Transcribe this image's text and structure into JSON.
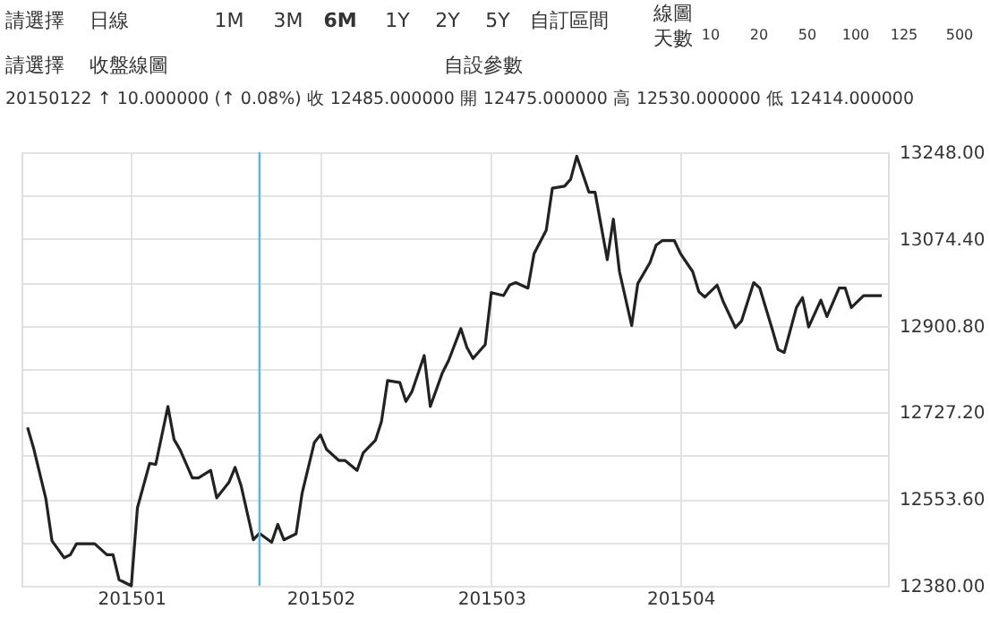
{
  "chart_data": {
    "type": "line",
    "annotations": [
      "請選擇",
      "日線",
      "1M",
      "3M",
      "6M",
      "1Y",
      "2Y",
      "5Y",
      "自訂區間",
      "線圖",
      "天數",
      "10",
      "20",
      "50",
      "100",
      "125",
      "500",
      "請選擇",
      "收盤線圖",
      "自設參數",
      "20150122  ↑ 10.000000 (↑ 0.08%)     收 12485.000000     開 12475.000000     高 12530.000000     低 12414.000000"
    ],
    "series": [
      {
        "color": "#222222",
        "x": [
          "2014-12-15",
          "2014-12-16",
          "2014-12-18",
          "2014-12-19",
          "2014-12-21",
          "2014-12-22",
          "2014-12-23",
          "2014-12-25",
          "2014-12-26",
          "2014-12-28",
          "2014-12-29",
          "2014-12-30",
          "2015-01-01",
          "2015-01-02",
          "2015-01-04",
          "2015-01-05",
          "2015-01-07",
          "2015-01-08",
          "2015-01-09",
          "2015-01-11",
          "2015-01-12",
          "2015-01-14",
          "2015-01-15",
          "2015-01-17",
          "2015-01-18",
          "2015-01-19",
          "2015-01-21",
          "2015-01-22",
          "2015-01-24",
          "2015-01-25",
          "2015-01-26",
          "2015-01-28",
          "2015-01-29",
          "2015-01-31",
          "2015-02-01",
          "2015-02-02",
          "2015-02-04",
          "2015-02-05",
          "2015-02-07",
          "2015-02-08",
          "2015-02-10",
          "2015-02-11",
          "2015-02-12",
          "2015-02-14",
          "2015-02-15",
          "2015-02-16",
          "2015-02-18",
          "2015-02-19",
          "2015-02-21",
          "2015-02-22",
          "2015-02-24",
          "2015-02-25",
          "2015-02-26",
          "2015-02-28",
          "2015-03-01",
          "2015-03-03",
          "2015-03-04",
          "2015-03-05",
          "2015-03-07",
          "2015-03-08",
          "2015-03-10",
          "2015-03-11",
          "2015-03-13",
          "2015-03-14",
          "2015-03-15",
          "2015-03-17",
          "2015-03-18",
          "2015-03-20",
          "2015-03-21",
          "2015-03-22",
          "2015-03-24",
          "2015-03-25",
          "2015-03-27",
          "2015-03-28",
          "2015-03-29",
          "2015-03-31",
          "2015-04-01",
          "2015-04-03",
          "2015-04-04",
          "2015-04-05",
          "2015-04-07",
          "2015-04-08",
          "2015-04-10",
          "2015-04-11",
          "2015-04-13",
          "2015-04-14",
          "2015-04-16",
          "2015-04-17",
          "2015-04-18",
          "2015-04-20",
          "2015-04-21",
          "2015-04-22",
          "2015-04-24",
          "2015-04-25",
          "2015-04-27",
          "2015-04-28",
          "2015-04-29",
          "2015-05-01",
          "2015-05-02",
          "2015-05-04"
        ],
        "values": [
          12697,
          12655,
          12554,
          12470,
          12436,
          12442,
          12464,
          12464,
          12464,
          12442,
          12442,
          12392,
          12380,
          12536,
          12625,
          12623,
          12739,
          12673,
          12652,
          12596,
          12596,
          12611,
          12556,
          12587,
          12617,
          12580,
          12472,
          12485,
          12467,
          12503,
          12472,
          12484,
          12566,
          12667,
          12682,
          12653,
          12631,
          12631,
          12611,
          12646,
          12671,
          12709,
          12791,
          12787,
          12749,
          12769,
          12841,
          12739,
          12807,
          12831,
          12895,
          12857,
          12835,
          12863,
          12967,
          12961,
          12982,
          12987,
          12976,
          13045,
          13092,
          13176,
          13180,
          13194,
          13240,
          13168,
          13168,
          13033,
          13114,
          13009,
          12901,
          12985,
          13027,
          13062,
          13071,
          13071,
          13045,
          13009,
          12969,
          12958,
          12982,
          12949,
          12897,
          12910,
          12987,
          12976,
          12895,
          12853,
          12847,
          12937,
          12957,
          12898,
          12952,
          12919,
          12976,
          12976,
          12937,
          12961,
          12961,
          12961
        ]
      }
    ],
    "xlim": [
      "2014-12-14",
      "2015-05-05"
    ],
    "xticks": [
      {
        "value": "2015-01-01",
        "label": "201501"
      },
      {
        "value": "2015-02-01",
        "label": "201502"
      },
      {
        "value": "2015-03-01",
        "label": "201503"
      },
      {
        "value": "2015-04-01",
        "label": "201504"
      }
    ],
    "ylim": [
      12380,
      13248
    ],
    "yticks": [
      {
        "value": 12380,
        "label": "12380.00"
      },
      {
        "value": 12466.8,
        "label": null
      },
      {
        "value": 12553.6,
        "label": "12553.60"
      },
      {
        "value": 12640.4,
        "label": null
      },
      {
        "value": 12727.2,
        "label": "12727.20"
      },
      {
        "value": 12814,
        "label": null
      },
      {
        "value": 12900.8,
        "label": "12900.80"
      },
      {
        "value": 12987.6,
        "label": null
      },
      {
        "value": 13074.4,
        "label": "13074.40"
      },
      {
        "value": 13161.2,
        "label": null
      },
      {
        "value": 13248,
        "label": "13248.00"
      }
    ],
    "ref_lines": [
      {
        "axis": "x",
        "value": "2015-01-22",
        "color": "#5bb8d8"
      }
    ],
    "grid": true
  }
}
